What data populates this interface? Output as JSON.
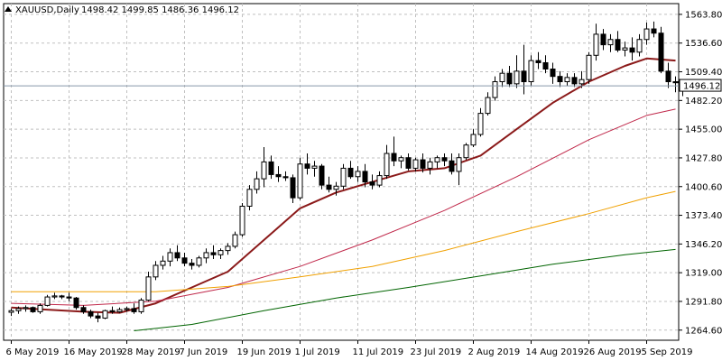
{
  "header": {
    "symbol": "XAUUSD,Daily",
    "ohlc": "1498.42 1499.85 1486.36 1496.12"
  },
  "chart_data": {
    "type": "candlestick",
    "ylim": [
      1255,
      1574
    ],
    "y_ticks": [
      1264.6,
      1291.8,
      1319.0,
      1346.2,
      1373.4,
      1400.6,
      1427.8,
      1455.0,
      1482.2,
      1509.4,
      1536.6,
      1563.8
    ],
    "y_tick_labels": [
      "1264.60",
      "1291.80",
      "1319.00",
      "1346.20",
      "1373.40",
      "1400.60",
      "1427.80",
      "1455.00",
      "1482.20",
      "1509.40",
      "1536.60",
      "1563.80"
    ],
    "x_labels": [
      {
        "label": "6 May 2019",
        "index": 0
      },
      {
        "label": "16 May 2019",
        "index": 8
      },
      {
        "label": "28 May 2019",
        "index": 16
      },
      {
        "label": "7 Jun 2019",
        "index": 24
      },
      {
        "label": "19 Jun 2019",
        "index": 32
      },
      {
        "label": "1 Jul 2019",
        "index": 40
      },
      {
        "label": "11 Jul 2019",
        "index": 48
      },
      {
        "label": "23 Jul 2019",
        "index": 56
      },
      {
        "label": "2 Aug 2019",
        "index": 64
      },
      {
        "label": "14 Aug 2019",
        "index": 72
      },
      {
        "label": "26 Aug 2019",
        "index": 80
      },
      {
        "label": "5 Sep 2019",
        "index": 88
      }
    ],
    "current_price": 1496.12,
    "current_price_label": "1496.12",
    "candles": [
      [
        1281.5,
        1285.0,
        1278.0,
        1283.0
      ],
      [
        1283.0,
        1287.0,
        1280.0,
        1285.0
      ],
      [
        1285.0,
        1288.0,
        1282.0,
        1286.0
      ],
      [
        1286.0,
        1287.0,
        1281.0,
        1282.0
      ],
      [
        1282.0,
        1290.0,
        1280.0,
        1288.0
      ],
      [
        1288.0,
        1298.0,
        1287.0,
        1296.0
      ],
      [
        1296.0,
        1300.0,
        1294.0,
        1297.0
      ],
      [
        1297.0,
        1298.0,
        1294.0,
        1296.0
      ],
      [
        1296.0,
        1300.0,
        1292.0,
        1295.0
      ],
      [
        1295.0,
        1296.0,
        1284.0,
        1286.0
      ],
      [
        1286.0,
        1288.0,
        1280.0,
        1282.0
      ],
      [
        1282.0,
        1284.0,
        1276.0,
        1278.0
      ],
      [
        1278.0,
        1281.0,
        1272.0,
        1276.0
      ],
      [
        1276.0,
        1284.0,
        1275.0,
        1283.0
      ],
      [
        1283.0,
        1287.0,
        1280.0,
        1282.0
      ],
      [
        1282.0,
        1286.0,
        1281.0,
        1284.0
      ],
      [
        1284.0,
        1287.0,
        1282.0,
        1285.0
      ],
      [
        1285.0,
        1290.0,
        1280.0,
        1282.0
      ],
      [
        1282.0,
        1295.0,
        1280.0,
        1293.0
      ],
      [
        1293.0,
        1320.0,
        1292.0,
        1315.0
      ],
      [
        1315.0,
        1330.0,
        1312.0,
        1326.0
      ],
      [
        1326.0,
        1335.0,
        1322.0,
        1330.0
      ],
      [
        1330.0,
        1342.0,
        1325.0,
        1338.0
      ],
      [
        1338.0,
        1345.0,
        1330.0,
        1333.0
      ],
      [
        1333.0,
        1338.0,
        1325.0,
        1328.0
      ],
      [
        1328.0,
        1332.0,
        1322.0,
        1326.0
      ],
      [
        1326.0,
        1335.0,
        1324.0,
        1333.0
      ],
      [
        1333.0,
        1342.0,
        1328.0,
        1338.0
      ],
      [
        1338.0,
        1345.0,
        1332.0,
        1336.0
      ],
      [
        1336.0,
        1342.0,
        1332.0,
        1340.0
      ],
      [
        1340.0,
        1347.0,
        1336.0,
        1344.0
      ],
      [
        1344.0,
        1358.0,
        1342.0,
        1355.0
      ],
      [
        1355.0,
        1385.0,
        1353.0,
        1382.0
      ],
      [
        1382.0,
        1402.0,
        1378.0,
        1398.0
      ],
      [
        1398.0,
        1415.0,
        1394.0,
        1408.0
      ],
      [
        1408.0,
        1438.0,
        1400.0,
        1424.0
      ],
      [
        1424.0,
        1430.0,
        1408.0,
        1412.0
      ],
      [
        1412.0,
        1420.0,
        1405.0,
        1410.0
      ],
      [
        1410.0,
        1415.0,
        1406.0,
        1409.0
      ],
      [
        1409.0,
        1412.0,
        1385.0,
        1390.0
      ],
      [
        1390.0,
        1428.0,
        1388.0,
        1422.0
      ],
      [
        1422.0,
        1432.0,
        1412.0,
        1418.0
      ],
      [
        1418.0,
        1425.0,
        1410.0,
        1420.0
      ],
      [
        1420.0,
        1422.0,
        1398.0,
        1402.0
      ],
      [
        1402.0,
        1410.0,
        1395.0,
        1398.0
      ],
      [
        1398.0,
        1405.0,
        1392.0,
        1401.0
      ],
      [
        1401.0,
        1422.0,
        1398.0,
        1418.0
      ],
      [
        1418.0,
        1425.0,
        1408.0,
        1410.0
      ],
      [
        1410.0,
        1420.0,
        1405.0,
        1415.0
      ],
      [
        1415.0,
        1422.0,
        1400.0,
        1405.0
      ],
      [
        1405.0,
        1412.0,
        1398.0,
        1402.0
      ],
      [
        1402.0,
        1415.0,
        1400.0,
        1411.0
      ],
      [
        1411.0,
        1440.0,
        1408.0,
        1432.0
      ],
      [
        1432.0,
        1448.0,
        1420.0,
        1425.0
      ],
      [
        1425.0,
        1430.0,
        1418.0,
        1428.0
      ],
      [
        1428.0,
        1432.0,
        1416.0,
        1418.0
      ],
      [
        1418.0,
        1428.0,
        1415.0,
        1426.0
      ],
      [
        1426.0,
        1432.0,
        1414.0,
        1418.0
      ],
      [
        1418.0,
        1428.0,
        1412.0,
        1424.0
      ],
      [
        1424.0,
        1430.0,
        1418.0,
        1428.0
      ],
      [
        1428.0,
        1432.0,
        1420.0,
        1425.0
      ],
      [
        1425.0,
        1432.0,
        1412.0,
        1415.0
      ],
      [
        1415.0,
        1432.0,
        1402.0,
        1428.0
      ],
      [
        1428.0,
        1442.0,
        1426.0,
        1440.0
      ],
      [
        1440.0,
        1455.0,
        1438.0,
        1450.0
      ],
      [
        1450.0,
        1475.0,
        1448.0,
        1470.0
      ],
      [
        1470.0,
        1490.0,
        1468.0,
        1485.0
      ],
      [
        1485.0,
        1505.0,
        1482.0,
        1500.0
      ],
      [
        1500.0,
        1512.0,
        1495.0,
        1508.0
      ],
      [
        1508.0,
        1515.0,
        1495.0,
        1498.0
      ],
      [
        1498.0,
        1525.0,
        1494.0,
        1510.0
      ],
      [
        1510.0,
        1535.0,
        1488.0,
        1500.0
      ],
      [
        1500.0,
        1525.0,
        1496.0,
        1520.0
      ],
      [
        1520.0,
        1528.0,
        1512.0,
        1518.0
      ],
      [
        1518.0,
        1525.0,
        1508.0,
        1512.0
      ],
      [
        1512.0,
        1518.0,
        1498.0,
        1505.0
      ],
      [
        1505.0,
        1510.0,
        1495.0,
        1500.0
      ],
      [
        1500.0,
        1508.0,
        1496.0,
        1504.0
      ],
      [
        1504.0,
        1508.0,
        1495.0,
        1498.0
      ],
      [
        1498.0,
        1510.0,
        1494.0,
        1502.0
      ],
      [
        1502.0,
        1528.0,
        1498.0,
        1525.0
      ],
      [
        1525.0,
        1555.0,
        1520.0,
        1545.0
      ],
      [
        1545.0,
        1550.0,
        1530.0,
        1535.0
      ],
      [
        1535.0,
        1545.0,
        1528.0,
        1540.0
      ],
      [
        1540.0,
        1548.0,
        1528.0,
        1530.0
      ],
      [
        1530.0,
        1538.0,
        1524.0,
        1532.0
      ],
      [
        1532.0,
        1542.0,
        1520.0,
        1528.0
      ],
      [
        1528.0,
        1545.0,
        1524.0,
        1540.0
      ],
      [
        1540.0,
        1556.0,
        1535.0,
        1550.0
      ],
      [
        1550.0,
        1557.0,
        1542.0,
        1546.0
      ],
      [
        1546.0,
        1552.0,
        1508.0,
        1510.0
      ],
      [
        1510.0,
        1518.0,
        1494.0,
        1500.0
      ],
      [
        1500.0,
        1505.0,
        1490.0,
        1499.0
      ],
      [
        1498.42,
        1499.85,
        1486.36,
        1496.12
      ]
    ],
    "ma_lines": [
      {
        "color": "#8b1a1a",
        "width": 2,
        "points": [
          [
            0,
            1286
          ],
          [
            5,
            1284
          ],
          [
            10,
            1282
          ],
          [
            15,
            1281
          ],
          [
            20,
            1290
          ],
          [
            25,
            1305
          ],
          [
            30,
            1320
          ],
          [
            35,
            1350
          ],
          [
            40,
            1380
          ],
          [
            45,
            1395
          ],
          [
            50,
            1405
          ],
          [
            55,
            1415
          ],
          [
            60,
            1418
          ],
          [
            65,
            1430
          ],
          [
            70,
            1455
          ],
          [
            75,
            1480
          ],
          [
            80,
            1500
          ],
          [
            85,
            1515
          ],
          [
            88,
            1522
          ],
          [
            92,
            1520
          ]
        ]
      },
      {
        "color": "#c0284a",
        "width": 1,
        "points": [
          [
            0,
            1290
          ],
          [
            10,
            1288
          ],
          [
            20,
            1292
          ],
          [
            30,
            1305
          ],
          [
            40,
            1325
          ],
          [
            50,
            1350
          ],
          [
            60,
            1378
          ],
          [
            70,
            1410
          ],
          [
            80,
            1445
          ],
          [
            88,
            1468
          ],
          [
            92,
            1474
          ]
        ]
      },
      {
        "color": "#f0a000",
        "width": 1,
        "points": [
          [
            0,
            1301
          ],
          [
            10,
            1301
          ],
          [
            20,
            1301
          ],
          [
            30,
            1306
          ],
          [
            40,
            1315
          ],
          [
            50,
            1325
          ],
          [
            60,
            1340
          ],
          [
            70,
            1358
          ],
          [
            80,
            1375
          ],
          [
            88,
            1390
          ],
          [
            92,
            1396
          ]
        ]
      },
      {
        "color": "#006400",
        "width": 1,
        "points": [
          [
            17,
            1264
          ],
          [
            25,
            1270
          ],
          [
            35,
            1283
          ],
          [
            45,
            1295
          ],
          [
            55,
            1305
          ],
          [
            65,
            1316
          ],
          [
            75,
            1327
          ],
          [
            85,
            1336
          ],
          [
            92,
            1341
          ]
        ]
      }
    ]
  }
}
